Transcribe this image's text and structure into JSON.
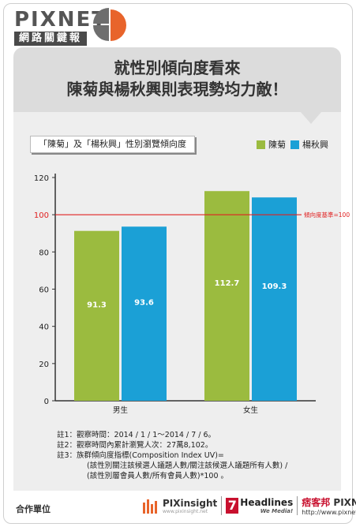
{
  "brand": {
    "name": "PIXNET",
    "subtitle": "網路關鍵報告"
  },
  "headline": {
    "line1": "就性別傾向度看來",
    "line2": "陳菊與楊秋興則表現勢均力敵！"
  },
  "chart_title": "「陳菊」及「楊秋興」性別瀏覽傾向度",
  "colors": {
    "series_1": "#9bbb3f",
    "series_2": "#1ba0d6",
    "reference": "#e02020",
    "header_bg": "#dcdcdc"
  },
  "chart_data": {
    "type": "bar",
    "categories": [
      "男生",
      "女生"
    ],
    "series": [
      {
        "name": "陳菊",
        "values": [
          91.3,
          112.7
        ]
      },
      {
        "name": "楊秋興",
        "values": [
          93.6,
          109.3
        ]
      }
    ],
    "value_labels": [
      [
        "91.3",
        "112.7"
      ],
      [
        "93.6",
        "109.3"
      ]
    ],
    "ylim": [
      0,
      120
    ],
    "yticks": [
      0,
      20,
      40,
      60,
      80,
      100,
      120
    ],
    "ytick_labels": [
      "0",
      "20",
      "40",
      "60",
      "80",
      "100",
      "120"
    ],
    "reference_line": {
      "value": 100,
      "label": "傾向度基準=100"
    },
    "legend_position": "top-right",
    "grid": false
  },
  "notes": [
    "註1：觀察時間：2014 / 1 / 1～2014 / 7 / 6。",
    "註2：觀察時間內累計瀏覽人次：27萬8,102。",
    "註3：族群傾向度指標(Composition Index UV)=",
    "(該性別關注該候選人議題人數/關注該候選人議題所有人數) /",
    "(該性別層會員人數/所有會員人數)*100  。"
  ],
  "footer": {
    "label": "合作單位",
    "pixinsight": "PIXinsight",
    "pixinsight_sub": "www.pixinsight.net",
    "seven": "7",
    "headlines": "Headlines",
    "headlines_sub": "We Media!",
    "pixnet_cn": "痞客邦",
    "pixnet": "PIXNET",
    "pixnet_url": "http://www.pixnet.net/"
  }
}
